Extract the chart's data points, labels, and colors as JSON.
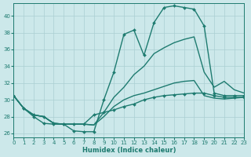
{
  "background_color": "#cce8ea",
  "grid_color": "#aacfd3",
  "line_color": "#1e7b70",
  "xlabel": "Humidex (Indice chaleur)",
  "xlim": [
    0,
    23
  ],
  "ylim": [
    25.5,
    41.5
  ],
  "yticks": [
    26,
    28,
    30,
    32,
    34,
    36,
    38,
    40
  ],
  "xticks": [
    0,
    1,
    2,
    3,
    4,
    5,
    6,
    7,
    8,
    9,
    10,
    11,
    12,
    13,
    14,
    15,
    16,
    17,
    18,
    19,
    20,
    21,
    22,
    23
  ],
  "series": [
    {
      "y": [
        30.5,
        29.0,
        28.0,
        27.2,
        27.1,
        27.1,
        26.3,
        26.2,
        26.2,
        30.0,
        33.3,
        37.8,
        38.3,
        35.3,
        39.2,
        41.0,
        41.2,
        41.0,
        40.8,
        38.8,
        30.8,
        30.5,
        30.5,
        30.5
      ],
      "marker": true,
      "linewidth": 1.0
    },
    {
      "y": [
        30.5,
        29.0,
        28.2,
        28.0,
        27.2,
        27.1,
        27.1,
        27.1,
        27.0,
        28.5,
        30.3,
        31.5,
        33.0,
        34.0,
        35.5,
        36.2,
        36.8,
        37.2,
        37.5,
        33.3,
        31.5,
        32.2,
        31.2,
        30.8
      ],
      "marker": false,
      "linewidth": 1.0
    },
    {
      "y": [
        30.5,
        29.0,
        28.2,
        28.0,
        27.2,
        27.1,
        27.1,
        27.1,
        27.0,
        28.0,
        29.2,
        30.0,
        30.5,
        30.8,
        31.2,
        31.6,
        32.0,
        32.2,
        32.3,
        30.5,
        30.2,
        30.1,
        30.2,
        30.3
      ],
      "marker": false,
      "linewidth": 1.0
    },
    {
      "y": [
        30.5,
        29.0,
        28.2,
        28.0,
        27.2,
        27.1,
        27.1,
        27.1,
        28.2,
        28.5,
        28.8,
        29.2,
        29.5,
        30.0,
        30.3,
        30.5,
        30.6,
        30.7,
        30.8,
        30.8,
        30.5,
        30.3,
        30.3,
        30.3
      ],
      "marker": true,
      "linewidth": 1.0
    }
  ]
}
